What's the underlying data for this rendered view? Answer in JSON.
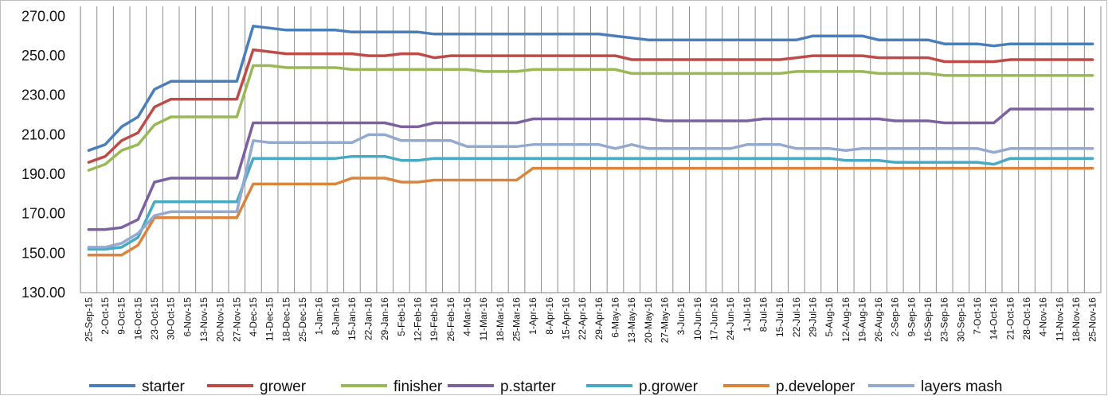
{
  "chart_data": {
    "type": "line",
    "title": "",
    "xlabel": "",
    "ylabel": "",
    "ylim": [
      130,
      275
    ],
    "yticks": [
      "130.00",
      "150.00",
      "170.00",
      "190.00",
      "210.00",
      "230.00",
      "250.00",
      "270.00"
    ],
    "grid": "vertical",
    "legend_position": "bottom",
    "x": [
      "25-Sep-15",
      "2-Oct-15",
      "9-Oct-15",
      "16-Oct-15",
      "23-Oct-15",
      "30-Oct-15",
      "6-Nov-15",
      "13-Nov-15",
      "20-Nov-15",
      "27-Nov-15",
      "4-Dec-15",
      "11-Dec-15",
      "18-Dec-15",
      "25-Dec-15",
      "1-Jan-16",
      "8-Jan-16",
      "15-Jan-16",
      "22-Jan-16",
      "29-Jan-16",
      "5-Feb-16",
      "12-Feb-16",
      "19-Feb-16",
      "26-Feb-16",
      "4-Mar-16",
      "11-Mar-16",
      "18-Mar-16",
      "25-Mar-16",
      "1-Apr-16",
      "8-Apr-16",
      "15-Apr-16",
      "22-Apr-16",
      "29-Apr-16",
      "6-May-16",
      "13-May-16",
      "20-May-16",
      "27-May-16",
      "3-Jun-16",
      "10-Jun-16",
      "17-Jun-16",
      "24-Jun-16",
      "1-Jul-16",
      "8-Jul-16",
      "15-Jul-16",
      "22-Jul-16",
      "29-Jul-16",
      "5-Aug-16",
      "12-Aug-16",
      "19-Aug-16",
      "26-Aug-16",
      "2-Sep-16",
      "9-Sep-16",
      "16-Sep-16",
      "23-Sep-16",
      "30-Sep-16",
      "7-Oct-16",
      "14-Oct-16",
      "21-Oct-16",
      "28-Oct-16",
      "4-Nov-16",
      "11-Nov-16",
      "18-Nov-16",
      "25-Nov-16"
    ],
    "series": [
      {
        "name": "starter",
        "color": "#4A7EBB",
        "values": [
          202,
          205,
          214,
          219,
          233,
          237,
          237,
          237,
          237,
          237,
          265,
          264,
          263,
          263,
          263,
          263,
          262,
          262,
          262,
          262,
          262,
          261,
          261,
          261,
          261,
          261,
          261,
          261,
          261,
          261,
          261,
          261,
          260,
          259,
          258,
          258,
          258,
          258,
          258,
          258,
          258,
          258,
          258,
          258,
          260,
          260,
          260,
          260,
          258,
          258,
          258,
          258,
          256,
          256,
          256,
          255,
          256,
          256,
          256,
          256,
          256,
          256
        ]
      },
      {
        "name": "grower",
        "color": "#BE4B48",
        "values": [
          196,
          199,
          207,
          211,
          224,
          228,
          228,
          228,
          228,
          228,
          253,
          252,
          251,
          251,
          251,
          251,
          251,
          250,
          250,
          251,
          251,
          249,
          250,
          250,
          250,
          250,
          250,
          250,
          250,
          250,
          250,
          250,
          250,
          248,
          248,
          248,
          248,
          248,
          248,
          248,
          248,
          248,
          248,
          249,
          250,
          250,
          250,
          250,
          249,
          249,
          249,
          249,
          247,
          247,
          247,
          247,
          248,
          248,
          248,
          248,
          248,
          248
        ]
      },
      {
        "name": "finisher",
        "color": "#98B954",
        "values": [
          192,
          195,
          202,
          205,
          215,
          219,
          219,
          219,
          219,
          219,
          245,
          245,
          244,
          244,
          244,
          244,
          243,
          243,
          243,
          243,
          243,
          243,
          243,
          243,
          242,
          242,
          242,
          243,
          243,
          243,
          243,
          243,
          243,
          241,
          241,
          241,
          241,
          241,
          241,
          241,
          241,
          241,
          241,
          242,
          242,
          242,
          242,
          242,
          241,
          241,
          241,
          241,
          240,
          240,
          240,
          240,
          240,
          240,
          240,
          240,
          240,
          240
        ]
      },
      {
        "name": "p.starter",
        "color": "#7D60A0",
        "values": [
          162,
          162,
          163,
          167,
          186,
          188,
          188,
          188,
          188,
          188,
          216,
          216,
          216,
          216,
          216,
          216,
          216,
          216,
          216,
          214,
          214,
          216,
          216,
          216,
          216,
          216,
          216,
          218,
          218,
          218,
          218,
          218,
          218,
          218,
          218,
          217,
          217,
          217,
          217,
          217,
          217,
          218,
          218,
          218,
          218,
          218,
          218,
          218,
          218,
          217,
          217,
          217,
          216,
          216,
          216,
          216,
          223,
          223,
          223,
          223,
          223,
          223
        ]
      },
      {
        "name": "p.grower",
        "color": "#46AAC5",
        "values": [
          152,
          152,
          153,
          158,
          176,
          176,
          176,
          176,
          176,
          176,
          198,
          198,
          198,
          198,
          198,
          198,
          199,
          199,
          199,
          197,
          197,
          198,
          198,
          198,
          198,
          198,
          198,
          198,
          198,
          198,
          198,
          198,
          198,
          198,
          198,
          198,
          198,
          198,
          198,
          198,
          198,
          198,
          198,
          198,
          198,
          198,
          197,
          197,
          197,
          196,
          196,
          196,
          196,
          196,
          196,
          195,
          198,
          198,
          198,
          198,
          198,
          198
        ]
      },
      {
        "name": "p.developer",
        "color": "#DB843D",
        "values": [
          149,
          149,
          149,
          154,
          168,
          168,
          168,
          168,
          168,
          168,
          185,
          185,
          185,
          185,
          185,
          185,
          188,
          188,
          188,
          186,
          186,
          187,
          187,
          187,
          187,
          187,
          187,
          193,
          193,
          193,
          193,
          193,
          193,
          193,
          193,
          193,
          193,
          193,
          193,
          193,
          193,
          193,
          193,
          193,
          193,
          193,
          193,
          193,
          193,
          193,
          193,
          193,
          193,
          193,
          193,
          193,
          193,
          193,
          193,
          193,
          193,
          193
        ]
      },
      {
        "name": "layers mash",
        "color": "#93A9CF",
        "values": [
          153,
          153,
          155,
          160,
          169,
          171,
          171,
          171,
          171,
          171,
          207,
          206,
          206,
          206,
          206,
          206,
          206,
          210,
          210,
          207,
          207,
          207,
          207,
          204,
          204,
          204,
          204,
          205,
          205,
          205,
          205,
          205,
          203,
          205,
          203,
          203,
          203,
          203,
          203,
          203,
          205,
          205,
          205,
          203,
          203,
          203,
          202,
          203,
          203,
          203,
          203,
          203,
          203,
          203,
          203,
          201,
          203,
          203,
          203,
          203,
          203,
          203
        ]
      }
    ]
  }
}
